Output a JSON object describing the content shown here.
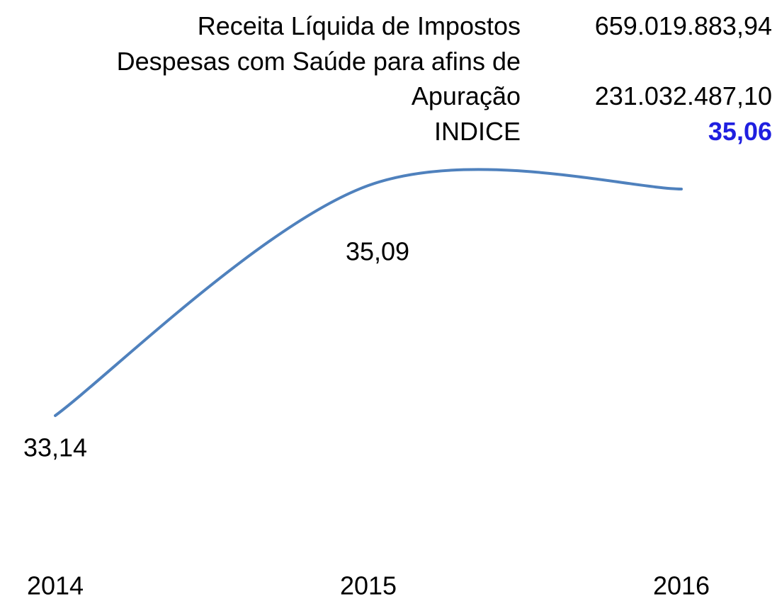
{
  "chart_data": {
    "type": "line",
    "categories": [
      "2014",
      "2015",
      "2016"
    ],
    "series": [
      {
        "name": null,
        "color": "#4f81bd",
        "values": [
          33.14,
          35.09,
          35.06
        ],
        "value_labels": [
          "33,14",
          "35,09",
          null
        ]
      }
    ],
    "table": {
      "rows": [
        [
          "Receita Líquida de Impostos",
          "659.019.883,94"
        ],
        [
          "Despesas com Saúde para afins de Apuração",
          "231.032.487,10"
        ],
        [
          "INDICE",
          "35,06"
        ]
      ]
    }
  }
}
